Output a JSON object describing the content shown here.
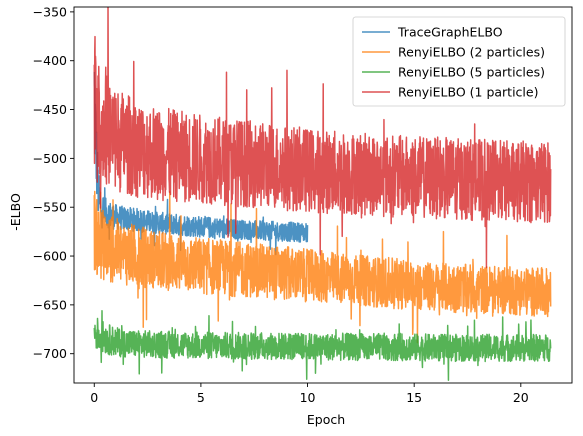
{
  "chart_data": {
    "type": "line",
    "title": "",
    "xlabel": "Epoch",
    "ylabel": "-ELBO",
    "xlim": [
      -0.95,
      22.4
    ],
    "ylim": [
      -730,
      -345
    ],
    "xticks": [
      0,
      5,
      10,
      15,
      20
    ],
    "yticks": [
      -700,
      -650,
      -600,
      -550,
      -500,
      -450,
      -400,
      -350
    ],
    "xtick_labels": [
      "0",
      "5",
      "10",
      "15",
      "20"
    ],
    "ytick_labels": [
      "−700",
      "−650",
      "−600",
      "−550",
      "−500",
      "−450",
      "−400",
      "−350"
    ],
    "grid": false,
    "legend_position": "upper right",
    "series": [
      {
        "name": "TraceGraphELBO",
        "color": "#1f77b4",
        "alpha": 0.8,
        "x": [
          0,
          0.05,
          0.1,
          0.2,
          0.3,
          0.5,
          0.75,
          1.0,
          1.5,
          2.0,
          2.5,
          3.0,
          4.0,
          5.0,
          6.0,
          7.0,
          8.0,
          9.0,
          10.0
        ],
        "y_mean": [
          -430,
          -470,
          -500,
          -540,
          -550,
          -555,
          -558,
          -560,
          -562,
          -563,
          -565,
          -566,
          -568,
          -570,
          -572,
          -573,
          -574,
          -575,
          -576
        ],
        "y_spread": [
          60,
          55,
          40,
          25,
          20,
          15,
          14,
          13,
          12,
          12,
          12,
          11,
          11,
          11,
          11,
          10,
          10,
          10,
          10
        ]
      },
      {
        "name": "RenyiELBO (2 particles)",
        "color": "#ff7f0e",
        "alpha": 0.8,
        "x": [
          0,
          0.1,
          0.2,
          0.5,
          1.0,
          2.0,
          3.0,
          4.0,
          5.0,
          6.0,
          7.0,
          8.0,
          9.0,
          10.0,
          11.0,
          12.0,
          13.0,
          14.0,
          15.0,
          16.0,
          17.0,
          18.0,
          19.0,
          20.0,
          21.0,
          21.4
        ],
        "y_mean": [
          -570,
          -580,
          -585,
          -590,
          -595,
          -600,
          -604,
          -607,
          -610,
          -612,
          -614,
          -616,
          -618,
          -620,
          -622,
          -624,
          -626,
          -628,
          -630,
          -632,
          -633,
          -634,
          -635,
          -636,
          -637,
          -637
        ],
        "y_spread": [
          45,
          40,
          38,
          36,
          34,
          32,
          30,
          30,
          29,
          29,
          28,
          28,
          28,
          27,
          27,
          26,
          26,
          26,
          25,
          25,
          25,
          25,
          25,
          25,
          25,
          25
        ]
      },
      {
        "name": "RenyiELBO (5 particles)",
        "color": "#2ca02c",
        "alpha": 0.8,
        "x": [
          0,
          0.5,
          1.0,
          2.0,
          4.0,
          6.0,
          8.0,
          10.0,
          12.0,
          14.0,
          16.0,
          18.0,
          20.0,
          21.4
        ],
        "y_mean": [
          -678,
          -684,
          -688,
          -690,
          -691,
          -692,
          -692,
          -693,
          -693,
          -693,
          -694,
          -694,
          -694,
          -694
        ],
        "y_spread": [
          18,
          16,
          15,
          14,
          14,
          14,
          14,
          14,
          14,
          14,
          14,
          14,
          14,
          14
        ]
      },
      {
        "name": "RenyiELBO (1 particle)",
        "color": "#d62728",
        "alpha": 0.8,
        "x": [
          0,
          0.05,
          0.1,
          0.2,
          0.5,
          1.0,
          1.5,
          2.0,
          3.0,
          4.0,
          5.0,
          6.0,
          7.0,
          8.0,
          9.0,
          10.0,
          11.0,
          12.0,
          13.0,
          14.0,
          15.0,
          16.0,
          17.0,
          18.0,
          19.0,
          20.0,
          21.0,
          21.4
        ],
        "y_mean": [
          -430,
          -420,
          -440,
          -460,
          -470,
          -480,
          -485,
          -490,
          -495,
          -498,
          -500,
          -503,
          -505,
          -507,
          -510,
          -512,
          -514,
          -515,
          -517,
          -518,
          -519,
          -520,
          -521,
          -522,
          -523,
          -524,
          -524,
          -524
        ],
        "y_spread": [
          80,
          70,
          65,
          60,
          58,
          55,
          52,
          50,
          48,
          47,
          46,
          45,
          45,
          44,
          44,
          43,
          43,
          43,
          42,
          42,
          42,
          42,
          42,
          42,
          42,
          42,
          42,
          42
        ]
      }
    ]
  }
}
